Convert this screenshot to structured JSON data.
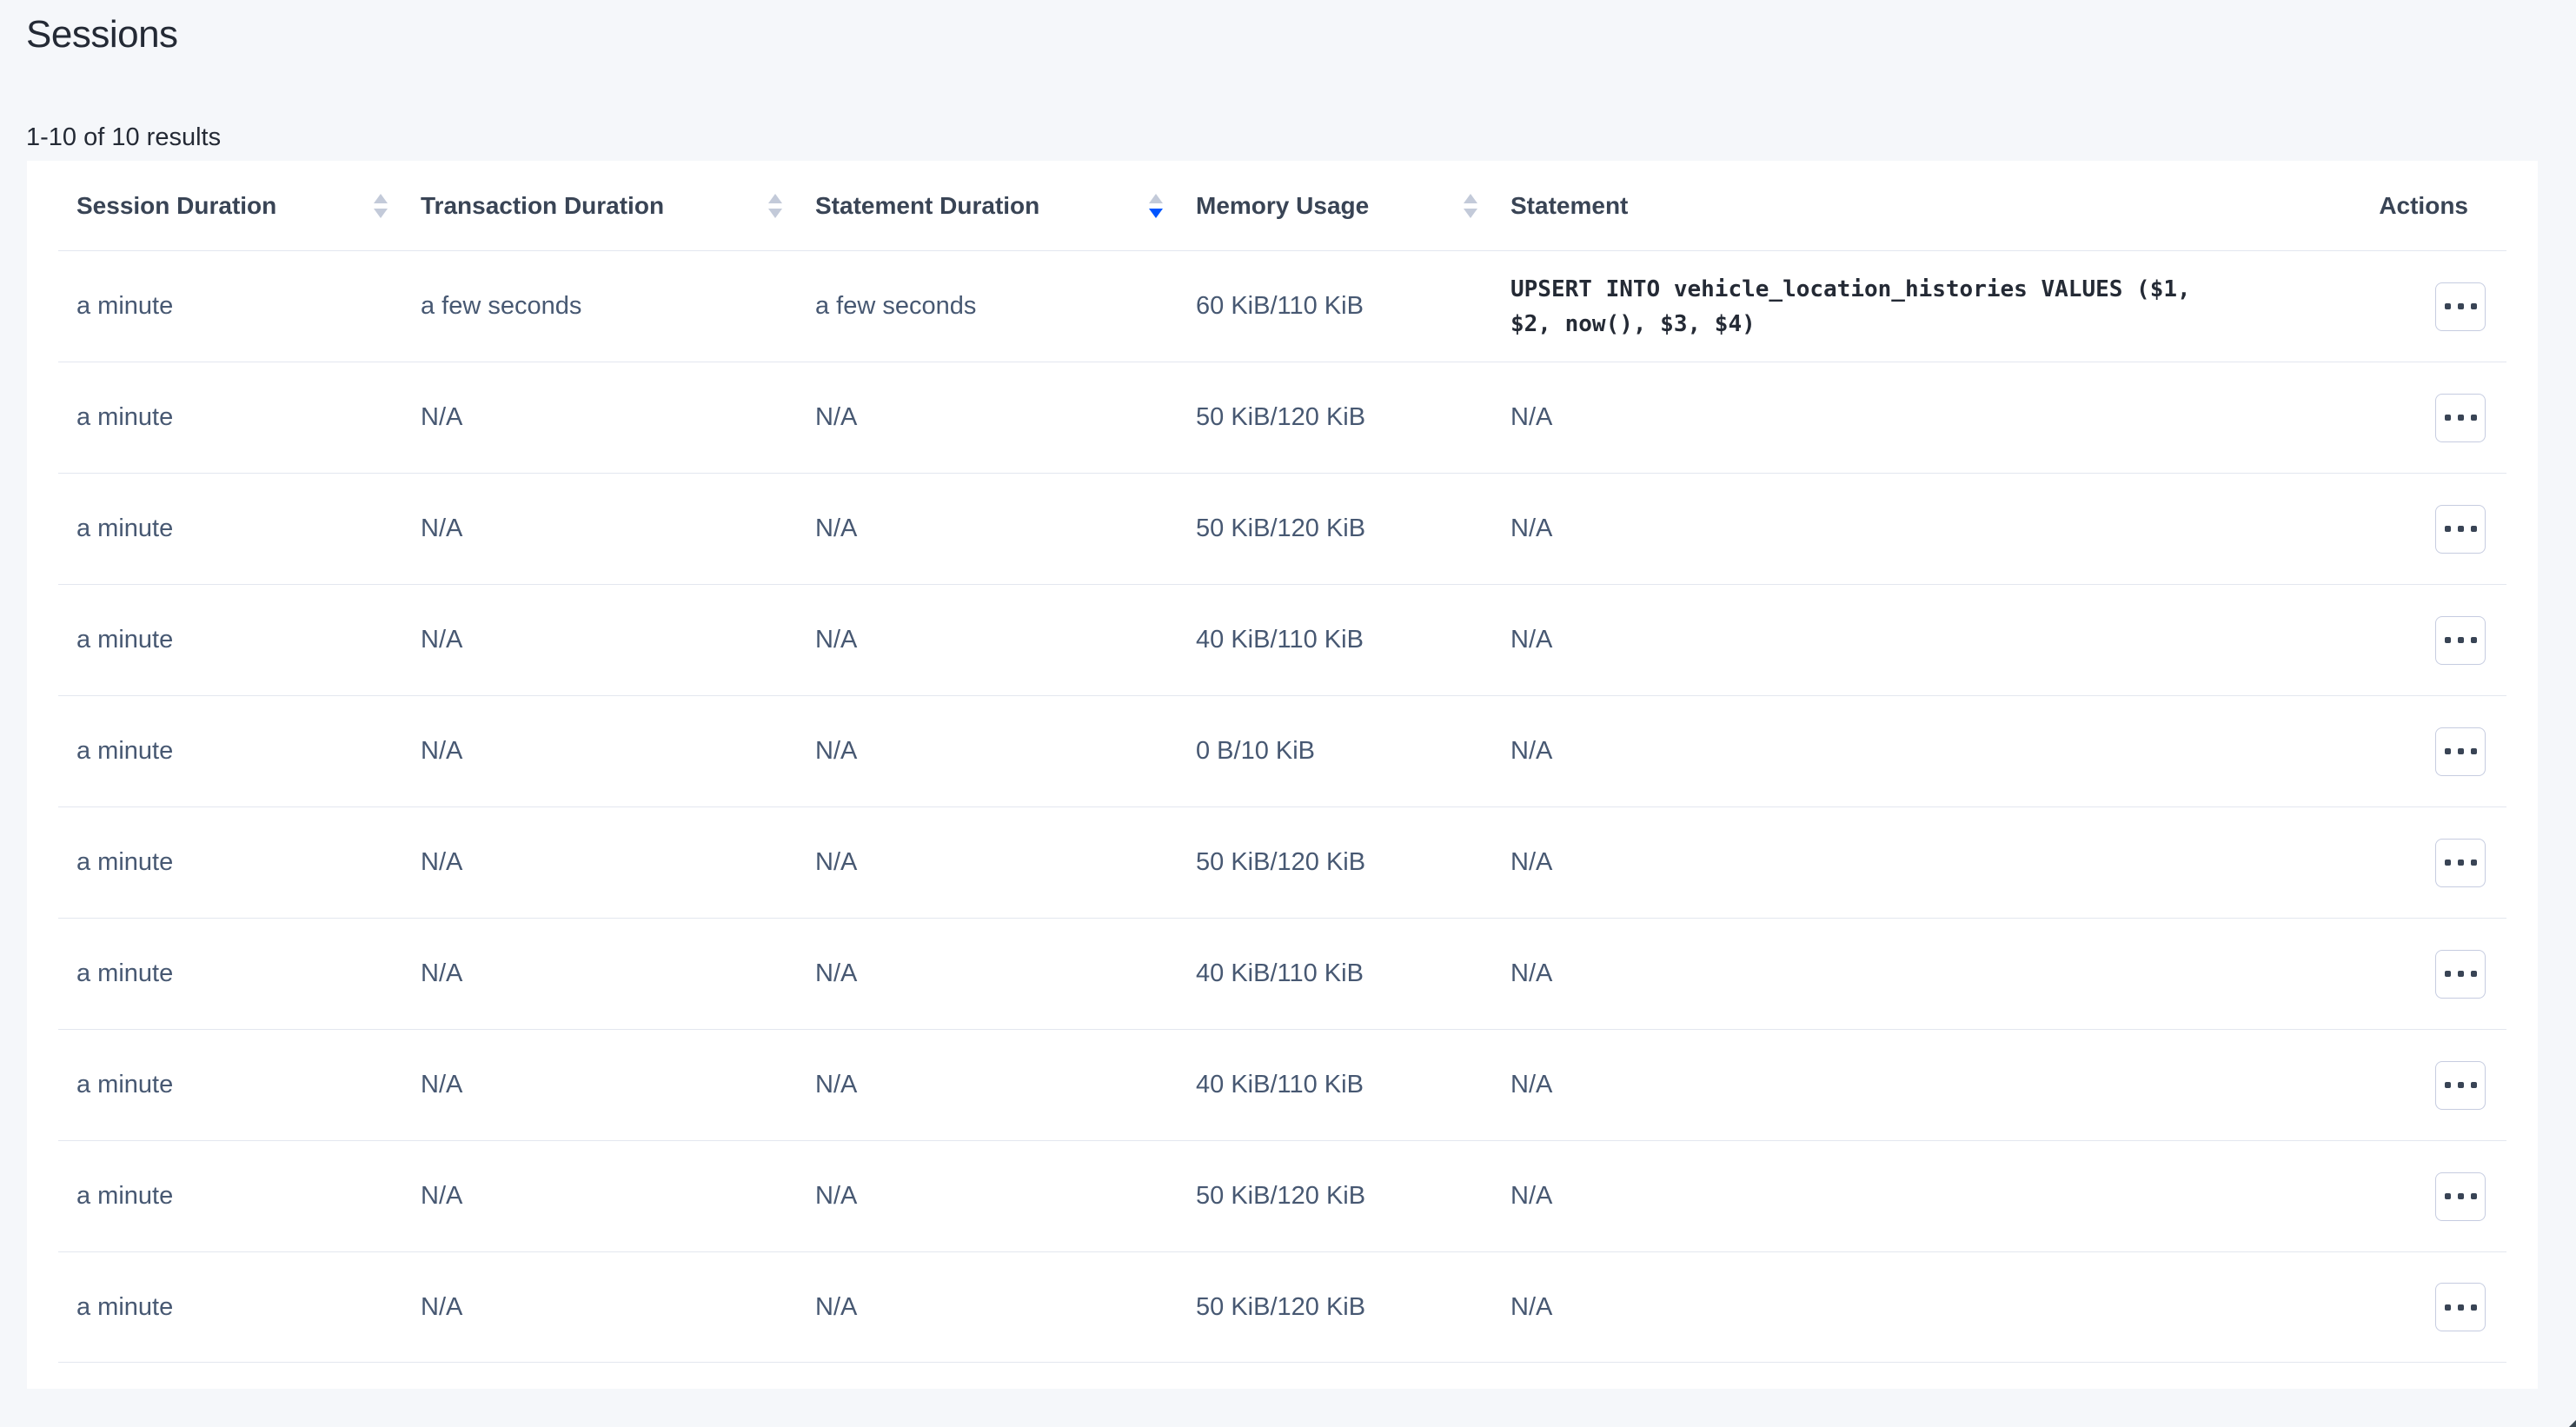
{
  "page": {
    "title": "Sessions",
    "results_summary": "1-10 of 10 results"
  },
  "colors": {
    "page_background": "#F5F7FA",
    "card_background": "#FFFFFF",
    "header_text": "#394455",
    "body_text": "#475872",
    "code_text": "#242A35",
    "accent_blue": "#0055FF",
    "divider": "#E3E7EF",
    "button_border": "#C6CCE0"
  },
  "icons": {
    "sort_inactive": "sort-carets-icon",
    "sort_active": "sort-desc-icon",
    "row_actions": "ellipsis-icon"
  },
  "table": {
    "columns": [
      {
        "label": "Session Duration",
        "sortable": true,
        "sort": "none"
      },
      {
        "label": "Transaction Duration",
        "sortable": true,
        "sort": "none"
      },
      {
        "label": "Statement Duration",
        "sortable": true,
        "sort": "desc"
      },
      {
        "label": "Memory Usage",
        "sortable": true,
        "sort": "none"
      },
      {
        "label": "Statement",
        "sortable": false,
        "sort": "none"
      },
      {
        "label": "Actions",
        "sortable": false,
        "sort": "none"
      }
    ],
    "rows": [
      {
        "session_duration": "a minute",
        "transaction_duration": "a few seconds",
        "statement_duration": "a few seconds",
        "memory_usage": "60 KiB/110 KiB",
        "statement": "UPSERT INTO vehicle_location_histories VALUES ($1, $2, now(), $3, $4)",
        "statement_kind": "code"
      },
      {
        "session_duration": "a minute",
        "transaction_duration": "N/A",
        "statement_duration": "N/A",
        "memory_usage": "50 KiB/120 KiB",
        "statement": "N/A",
        "statement_kind": "plain"
      },
      {
        "session_duration": "a minute",
        "transaction_duration": "N/A",
        "statement_duration": "N/A",
        "memory_usage": "50 KiB/120 KiB",
        "statement": "N/A",
        "statement_kind": "plain"
      },
      {
        "session_duration": "a minute",
        "transaction_duration": "N/A",
        "statement_duration": "N/A",
        "memory_usage": "40 KiB/110 KiB",
        "statement": "N/A",
        "statement_kind": "plain"
      },
      {
        "session_duration": "a minute",
        "transaction_duration": "N/A",
        "statement_duration": "N/A",
        "memory_usage": "0 B/10 KiB",
        "statement": "N/A",
        "statement_kind": "plain"
      },
      {
        "session_duration": "a minute",
        "transaction_duration": "N/A",
        "statement_duration": "N/A",
        "memory_usage": "50 KiB/120 KiB",
        "statement": "N/A",
        "statement_kind": "plain"
      },
      {
        "session_duration": "a minute",
        "transaction_duration": "N/A",
        "statement_duration": "N/A",
        "memory_usage": "40 KiB/110 KiB",
        "statement": "N/A",
        "statement_kind": "plain"
      },
      {
        "session_duration": "a minute",
        "transaction_duration": "N/A",
        "statement_duration": "N/A",
        "memory_usage": "40 KiB/110 KiB",
        "statement": "N/A",
        "statement_kind": "plain"
      },
      {
        "session_duration": "a minute",
        "transaction_duration": "N/A",
        "statement_duration": "N/A",
        "memory_usage": "50 KiB/120 KiB",
        "statement": "N/A",
        "statement_kind": "plain"
      },
      {
        "session_duration": "a minute",
        "transaction_duration": "N/A",
        "statement_duration": "N/A",
        "memory_usage": "50 KiB/120 KiB",
        "statement": "N/A",
        "statement_kind": "plain"
      }
    ]
  }
}
